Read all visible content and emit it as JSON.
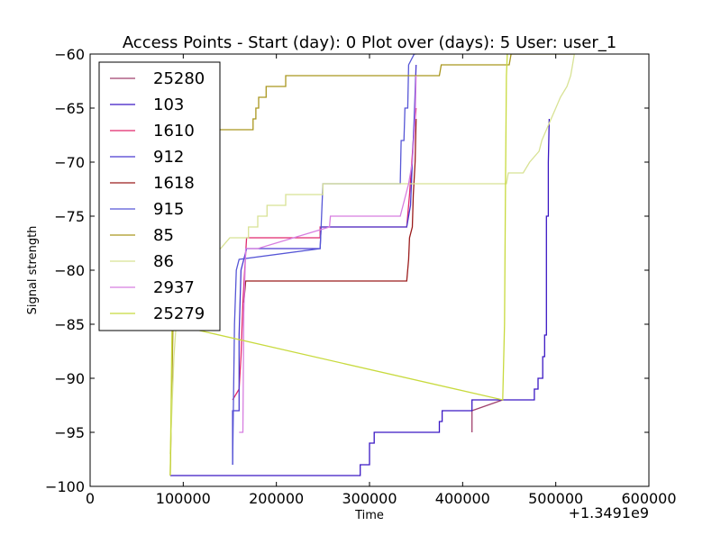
{
  "chart_data": {
    "type": "line",
    "title": "Access Points - Start (day): 0 Plot over (days): 5 User: user_1",
    "xlabel": "Time",
    "ylabel": "Signal strength",
    "x_offset_label": "+1.3491e9",
    "xlim": [
      0,
      600000
    ],
    "ylim": [
      -100,
      -60
    ],
    "x_ticks": [
      0,
      100000,
      200000,
      300000,
      400000,
      500000,
      600000
    ],
    "y_ticks": [
      -100,
      -95,
      -90,
      -85,
      -80,
      -75,
      -70,
      -65,
      -60
    ],
    "grid": false,
    "legend_position": "upper-left",
    "series": [
      {
        "name": "25280",
        "color": "#a0426e",
        "points": [
          [
            410000,
            -95
          ],
          [
            410000,
            -93
          ],
          [
            443000,
            -92
          ]
        ]
      },
      {
        "name": "103",
        "color": "#3a17c4",
        "points": [
          [
            86000,
            -99
          ],
          [
            290000,
            -99
          ],
          [
            290000,
            -98
          ],
          [
            300000,
            -98
          ],
          [
            300000,
            -96
          ],
          [
            305000,
            -96
          ],
          [
            305000,
            -95
          ],
          [
            375000,
            -95
          ],
          [
            375000,
            -94
          ],
          [
            378000,
            -94
          ],
          [
            378000,
            -93
          ],
          [
            410000,
            -93
          ],
          [
            410000,
            -92
          ],
          [
            477000,
            -92
          ],
          [
            477000,
            -91
          ],
          [
            481000,
            -91
          ],
          [
            481000,
            -90
          ],
          [
            486000,
            -90
          ],
          [
            486000,
            -88
          ],
          [
            488000,
            -88
          ],
          [
            488000,
            -86
          ],
          [
            490000,
            -86
          ],
          [
            490000,
            -75
          ],
          [
            492000,
            -75
          ],
          [
            492000,
            -70
          ],
          [
            493000,
            -66
          ]
        ]
      },
      {
        "name": "1610",
        "color": "#e0286c",
        "points": [
          [
            153000,
            -92
          ],
          [
            160000,
            -91
          ],
          [
            162000,
            -88
          ],
          [
            164000,
            -83
          ],
          [
            166000,
            -80
          ],
          [
            168000,
            -77
          ],
          [
            247000,
            -77
          ],
          [
            247000,
            -76
          ],
          [
            340000,
            -76
          ],
          [
            343000,
            -73
          ],
          [
            347000,
            -68
          ],
          [
            350000,
            -65
          ]
        ]
      },
      {
        "name": "912",
        "color": "#4a3ad0",
        "points": [
          [
            153000,
            -98
          ],
          [
            153000,
            -93
          ],
          [
            160000,
            -93
          ],
          [
            160000,
            -86
          ],
          [
            162000,
            -80
          ],
          [
            168000,
            -78
          ],
          [
            247000,
            -78
          ],
          [
            248000,
            -76
          ],
          [
            340000,
            -76
          ],
          [
            344000,
            -74
          ],
          [
            346000,
            -70
          ],
          [
            348000,
            -66
          ],
          [
            350000,
            -61
          ]
        ]
      },
      {
        "name": "1618",
        "color": "#9b1c1c",
        "points": [
          [
            165000,
            -83
          ],
          [
            167000,
            -81
          ],
          [
            340000,
            -81
          ],
          [
            342000,
            -79
          ],
          [
            343000,
            -77
          ],
          [
            346000,
            -76
          ],
          [
            347000,
            -73
          ],
          [
            349000,
            -70
          ],
          [
            350000,
            -66
          ]
        ]
      },
      {
        "name": "915",
        "color": "#5656d6",
        "points": [
          [
            153000,
            -98
          ],
          [
            155000,
            -85
          ],
          [
            157000,
            -80
          ],
          [
            160000,
            -79
          ],
          [
            247000,
            -78
          ],
          [
            248000,
            -76
          ],
          [
            250000,
            -72
          ],
          [
            333000,
            -72
          ],
          [
            334000,
            -68
          ],
          [
            337000,
            -68
          ],
          [
            338000,
            -65
          ],
          [
            341000,
            -65
          ],
          [
            342000,
            -61
          ],
          [
            348000,
            -60
          ],
          [
            350000,
            -60
          ]
        ]
      },
      {
        "name": "85",
        "color": "#a9961e",
        "points": [
          [
            86000,
            -99
          ],
          [
            89000,
            -85
          ],
          [
            91000,
            -82
          ],
          [
            96000,
            -74
          ],
          [
            99000,
            -72
          ],
          [
            104000,
            -70
          ],
          [
            113000,
            -69
          ],
          [
            117000,
            -68
          ],
          [
            130000,
            -68
          ],
          [
            137000,
            -67
          ],
          [
            175000,
            -67
          ],
          [
            175000,
            -66
          ],
          [
            178000,
            -66
          ],
          [
            178000,
            -65
          ],
          [
            181000,
            -65
          ],
          [
            181000,
            -64
          ],
          [
            189000,
            -64
          ],
          [
            189000,
            -63
          ],
          [
            195000,
            -63
          ],
          [
            210000,
            -63
          ],
          [
            210000,
            -62
          ],
          [
            375000,
            -62
          ],
          [
            377000,
            -61
          ],
          [
            450000,
            -61
          ],
          [
            452000,
            -60
          ],
          [
            520000,
            -60
          ]
        ]
      },
      {
        "name": "86",
        "color": "#d8e294",
        "points": [
          [
            86000,
            -97
          ],
          [
            90000,
            -88
          ],
          [
            94000,
            -83
          ],
          [
            99000,
            -81
          ],
          [
            108000,
            -80
          ],
          [
            140000,
            -78
          ],
          [
            150000,
            -77
          ],
          [
            170000,
            -77
          ],
          [
            170000,
            -76
          ],
          [
            180000,
            -76
          ],
          [
            180000,
            -75
          ],
          [
            190000,
            -75
          ],
          [
            190000,
            -74
          ],
          [
            210000,
            -74
          ],
          [
            210000,
            -73
          ],
          [
            250000,
            -73
          ],
          [
            250000,
            -72
          ],
          [
            447000,
            -72
          ],
          [
            449000,
            -71
          ],
          [
            465000,
            -71
          ],
          [
            472000,
            -70
          ],
          [
            482000,
            -69
          ],
          [
            485000,
            -68
          ],
          [
            490000,
            -67
          ],
          [
            495000,
            -66
          ],
          [
            500000,
            -65
          ],
          [
            505000,
            -64
          ],
          [
            512000,
            -63
          ],
          [
            516000,
            -62
          ],
          [
            518000,
            -61
          ],
          [
            520000,
            -60
          ]
        ]
      },
      {
        "name": "2937",
        "color": "#d77de0",
        "points": [
          [
            160000,
            -95
          ],
          [
            164000,
            -95
          ],
          [
            165000,
            -84
          ],
          [
            167000,
            -78
          ],
          [
            180000,
            -78
          ],
          [
            257000,
            -76
          ],
          [
            258000,
            -75
          ],
          [
            333000,
            -75
          ],
          [
            336000,
            -74
          ],
          [
            339000,
            -73
          ],
          [
            342000,
            -72
          ],
          [
            346000,
            -70
          ],
          [
            349000,
            -66
          ],
          [
            350000,
            -62
          ]
        ]
      },
      {
        "name": "25279",
        "color": "#c8da3e",
        "points": [
          [
            86000,
            -99
          ],
          [
            87000,
            -92
          ],
          [
            88000,
            -85
          ],
          [
            443000,
            -92
          ],
          [
            445000,
            -85
          ],
          [
            446000,
            -72
          ],
          [
            447000,
            -62
          ],
          [
            448000,
            -60
          ]
        ]
      }
    ]
  }
}
